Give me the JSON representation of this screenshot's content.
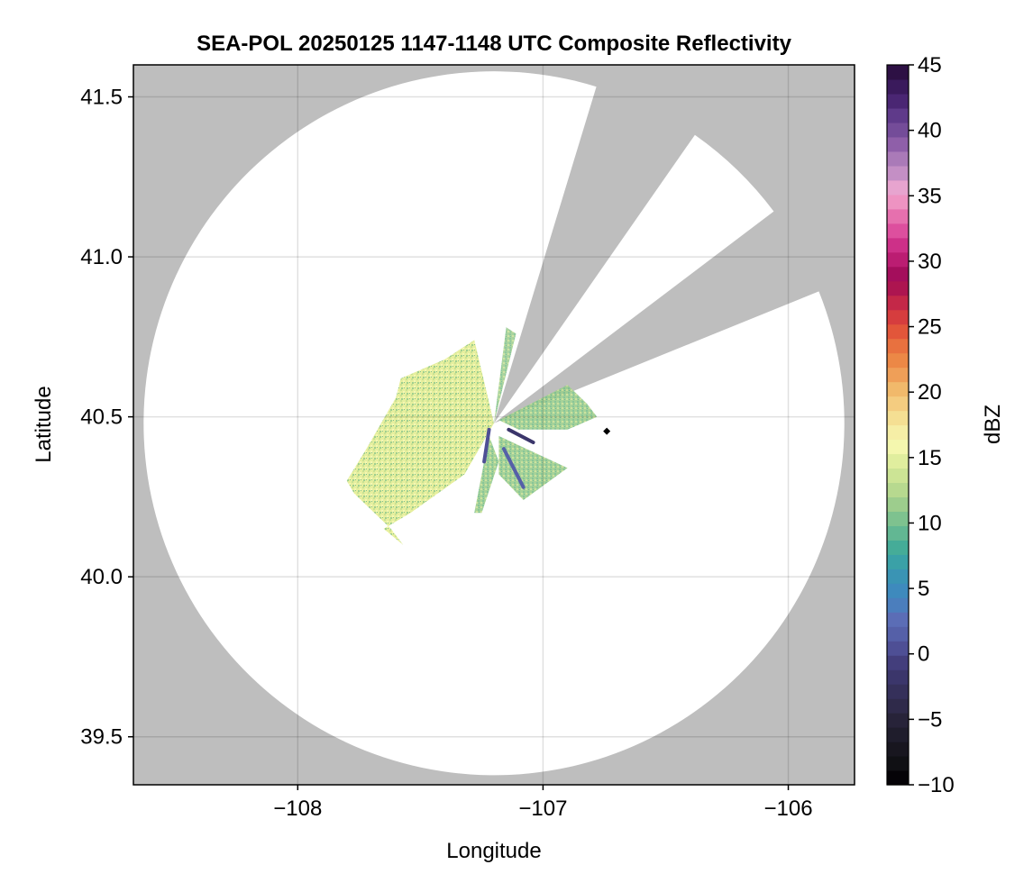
{
  "chart_data": {
    "type": "heatmap",
    "title": "SEA-POL 20250125 1147-1148 UTC Composite Reflectivity",
    "xlabel": "Longitude",
    "ylabel": "Latitude",
    "xlim": [
      -108.67,
      -105.73
    ],
    "ylim": [
      39.35,
      41.6
    ],
    "xticks": [
      -108,
      -107,
      -106
    ],
    "xtick_labels": [
      "−108",
      "−107",
      "−106"
    ],
    "yticks": [
      39.5,
      40.0,
      40.5,
      41.0,
      41.5
    ],
    "ytick_labels": [
      "39.5",
      "40.0",
      "40.5",
      "41.0",
      "41.5"
    ],
    "grid": true,
    "background_color": "#bebebe",
    "coverage_color": "#ffffff",
    "radar_center": [
      -107.2,
      40.48
    ],
    "radar_range_deg_lat": 1.1,
    "blocked_sectors_deg_from_north": [
      [
        17,
        35
      ],
      [
        53,
        68
      ]
    ],
    "marker": {
      "lon": -106.74,
      "lat": 40.455,
      "color": "#000000"
    },
    "echo_approx_lon_range": [
      -107.82,
      -106.7
    ],
    "echo_approx_lat_range": [
      40.1,
      40.78
    ],
    "echo_typical_dbz": [
      8,
      18
    ],
    "colorbar": {
      "label": "dBZ",
      "range": [
        -10,
        45
      ],
      "ticks": [
        -10,
        -5,
        0,
        5,
        10,
        15,
        20,
        25,
        30,
        35,
        40,
        45
      ],
      "tick_labels": [
        "−10",
        "−5",
        "0",
        "5",
        "10",
        "15",
        "20",
        "25",
        "30",
        "35",
        "40",
        "45"
      ],
      "colors": [
        "#050307",
        "#101014",
        "#18161f",
        "#1f1d2c",
        "#272339",
        "#2f2a4a",
        "#35305a",
        "#3b366b",
        "#433e7c",
        "#4e4f95",
        "#5560a8",
        "#5b6db6",
        "#4b7ebd",
        "#3e8abd",
        "#3a94b4",
        "#3aa1a7",
        "#45ac98",
        "#62b793",
        "#7ec28f",
        "#9dcd8d",
        "#b7d98f",
        "#cce495",
        "#e0ee9e",
        "#f4f7ae",
        "#f6eea6",
        "#f5df93",
        "#f4cc80",
        "#f1b96b",
        "#ef9f58",
        "#ec8846",
        "#e8713f",
        "#e2563a",
        "#d63d3e",
        "#c42848",
        "#ad1550",
        "#a40e5c",
        "#bb1d72",
        "#cd3088",
        "#dd4f9e",
        "#e670ae",
        "#ee93c2",
        "#e7a4cf",
        "#c48fc5",
        "#aa7ab8",
        "#8f5fa9",
        "#744c99",
        "#5f3a8a",
        "#4a2673",
        "#3a1a5c",
        "#2d1044"
      ]
    }
  }
}
